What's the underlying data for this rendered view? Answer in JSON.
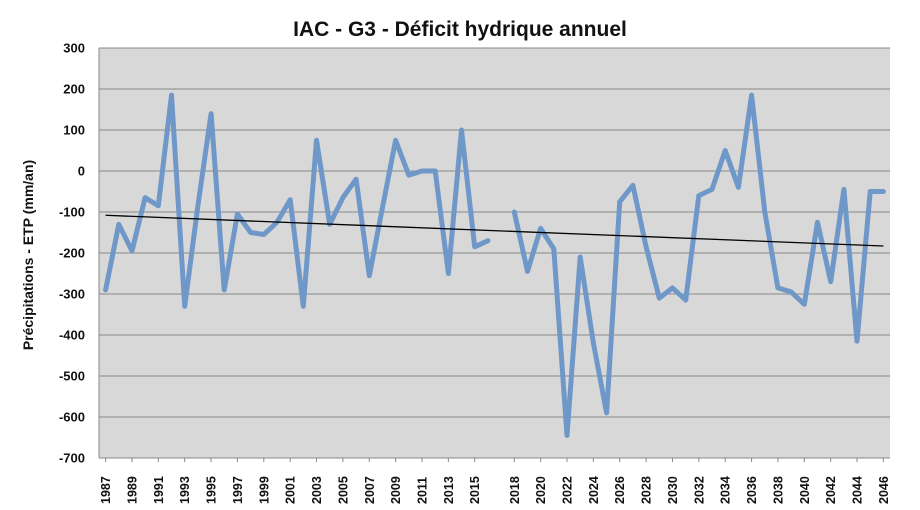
{
  "chart_data": {
    "type": "line",
    "title": "IAC - G3 - Déficit hydrique annuel",
    "xlabel": "",
    "ylabel": "Précipitations - ETP (mm/an)",
    "ylim": [
      -700,
      300
    ],
    "yticks": [
      300,
      200,
      100,
      0,
      -100,
      -200,
      -300,
      -400,
      -500,
      -600,
      -700
    ],
    "xticks": [
      "1987",
      "1989",
      "1991",
      "1993",
      "1995",
      "1997",
      "1999",
      "2001",
      "2003",
      "2005",
      "2007",
      "2009",
      "2011",
      "2013",
      "2015",
      "2018",
      "2020",
      "2022",
      "2024",
      "2026",
      "2028",
      "2030",
      "2032",
      "2034",
      "2036",
      "2038",
      "2040",
      "2042",
      "2044",
      "2046"
    ],
    "grid": true,
    "legend": "none",
    "series": [
      {
        "color": "#6f98c9",
        "x": [
          1987,
          1988,
          1989,
          1990,
          1991,
          1992,
          1993,
          1994,
          1995,
          1996,
          1997,
          1998,
          1999,
          2000,
          2001,
          2002,
          2003,
          2004,
          2005,
          2006,
          2007,
          2008,
          2009,
          2010,
          2011,
          2012,
          2013,
          2014,
          2015,
          2016,
          2017,
          2018,
          2019,
          2020,
          2021,
          2022,
          2023,
          2024,
          2025,
          2026,
          2027,
          2028,
          2029,
          2030,
          2031,
          2032,
          2033,
          2034,
          2035,
          2036,
          2037,
          2038,
          2039,
          2040,
          2041,
          2042,
          2043,
          2044,
          2045,
          2046
        ],
        "values": [
          -290,
          -130,
          -195,
          -65,
          -85,
          185,
          -330,
          -85,
          140,
          -290,
          -105,
          -150,
          -155,
          -125,
          -70,
          -330,
          75,
          -130,
          -65,
          -20,
          -255,
          -90,
          75,
          -10,
          0,
          0,
          -250,
          100,
          -185,
          -170,
          null,
          -100,
          -245,
          -140,
          -190,
          -645,
          -210,
          -420,
          -590,
          -75,
          -35,
          -185,
          -310,
          -285,
          -315,
          -60,
          -45,
          50,
          -40,
          185,
          -100,
          -285,
          -295,
          -325,
          -125,
          -270,
          -45,
          -415,
          -50,
          -50
        ]
      },
      {
        "name": "",
        "color": "#000000",
        "trend": true,
        "x": [
          1987,
          2046
        ],
        "values": [
          -108,
          -183
        ]
      }
    ]
  },
  "colors": {
    "series": "#6f98c9",
    "trend": "#000000",
    "grid": "#888888",
    "background": "#ffffff"
  }
}
